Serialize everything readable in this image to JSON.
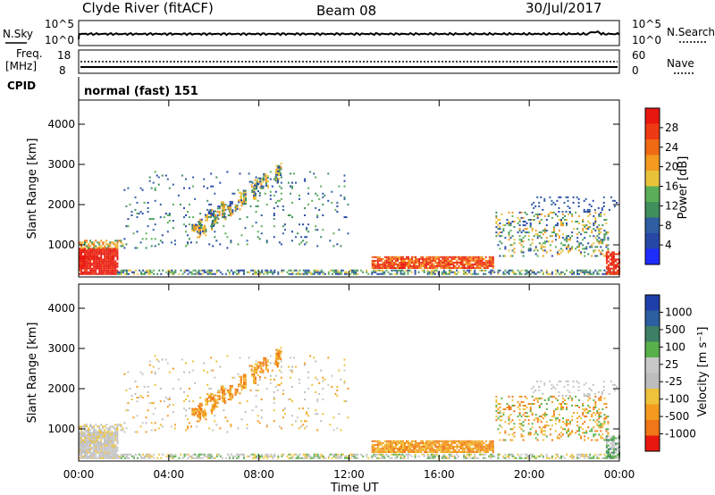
{
  "header": {
    "station": "Clyde River (fitACF)",
    "beam": "Beam 08",
    "date": "30/Jul/2017"
  },
  "top_panels": {
    "nsky_label": "N.Sky",
    "nsky_ticks": [
      "10^5",
      "10^0"
    ],
    "nsearch_label": "N.Search",
    "nsearch_ticks": [
      "10^5",
      "10^0"
    ],
    "freq_label": "Freq.",
    "freq_unit": "[MHz]",
    "freq_ticks": [
      "18",
      "8"
    ],
    "nave_label": "Nave",
    "nave_ticks": [
      "60",
      "0"
    ],
    "cpid_label": "CPID",
    "cpid_value": "normal (fast) 151"
  },
  "colors": {
    "power": [
      "#1f2cff",
      "#2747a6",
      "#2f5ea3",
      "#3f8f5c",
      "#5aae58",
      "#e8c33a",
      "#f39a1f",
      "#f06a14",
      "#ee3a12",
      "#e81810"
    ],
    "velocity": [
      "#1f3fa8",
      "#2a5fa0",
      "#3d7f65",
      "#58b04a",
      "#c8c8c8",
      "#bdbdbd",
      "#eec23a",
      "#f39a1f",
      "#f07618",
      "#e81810"
    ]
  },
  "chart_data": [
    {
      "type": "heatmap",
      "name": "power",
      "ylabel": "Slant Range [km]",
      "yticks": [
        "1000",
        "2000",
        "3000",
        "4000"
      ],
      "ylim": [
        200,
        4600
      ],
      "xlim": [
        0,
        24
      ],
      "colorbar_label": "Power [dB]",
      "colorbar_ticks": [
        "4",
        "8",
        "12",
        "16",
        "20",
        "24",
        "28"
      ],
      "colorbar_range": [
        0,
        32
      ]
    },
    {
      "type": "heatmap",
      "name": "velocity",
      "ylabel": "Slant Range [km]",
      "yticks": [
        "1000",
        "2000",
        "3000",
        "4000"
      ],
      "ylim": [
        200,
        4600
      ],
      "xlim": [
        0,
        24
      ],
      "xlabel": "Time UT",
      "xticks": [
        "00:00",
        "04:00",
        "08:00",
        "12:00",
        "16:00",
        "20:00",
        "00:00"
      ],
      "colorbar_label": "Velocity [m s⁻¹]",
      "colorbar_ticks": [
        "1000",
        "500",
        "100",
        "25",
        "-25",
        "-100",
        "-500",
        "-1000"
      ]
    }
  ]
}
